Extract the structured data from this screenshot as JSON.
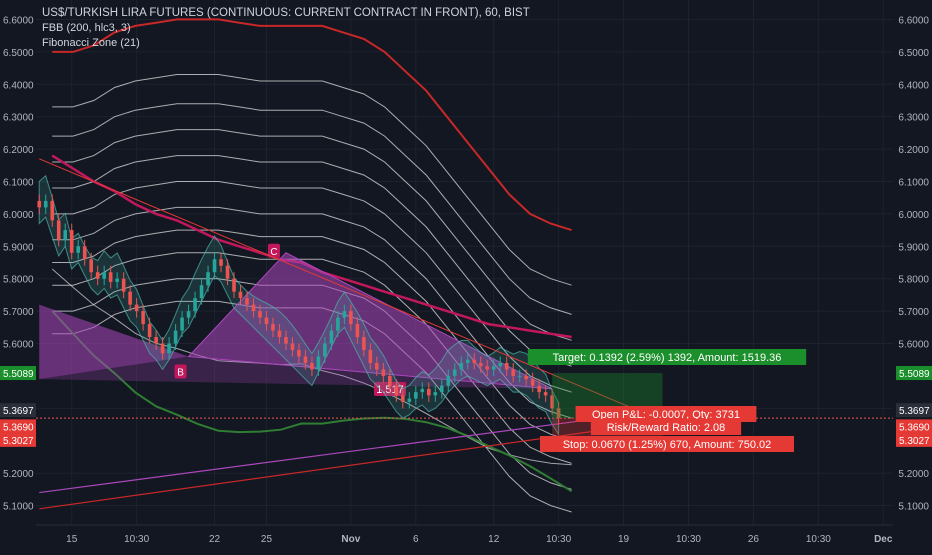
{
  "header": {
    "title": "US$/TURKISH LIRA FUTURES (CONTINUOUS: CURRENT CONTRACT IN FRONT), 60, BIST",
    "indicator_1": "FBB (200, hlc3, 3)",
    "indicator_2": "Fibonacci Zone (21)"
  },
  "colors": {
    "background": "#131722",
    "grid": "#1e2230",
    "axis_text": "#b2b5be",
    "up_candle": "#26a69a",
    "down_candle": "#ef5350",
    "fbb_outer": "#c62828",
    "fbb_mid": "#c2185b",
    "fbb_bands": "#e0e0e0",
    "fib_zone": "#4db6ac",
    "pattern_fill": "#ab47bc",
    "target_green": "#1b8f2b",
    "stop_red": "#e53935"
  },
  "chart_data": {
    "type": "candlestick",
    "symbol": "US$/TURKISH LIRA FUTURES (CONTINUOUS: CURRENT CONTRACT IN FRONT)",
    "timeframe": "60",
    "exchange": "BIST",
    "ylim": [
      5.04,
      6.66
    ],
    "y_ticks": [
      "6.6000",
      "6.5000",
      "6.4000",
      "6.3000",
      "6.2000",
      "6.1000",
      "6.0000",
      "5.9000",
      "5.8000",
      "5.7000",
      "5.6000",
      "5.4000",
      "5.2000",
      "5.1000"
    ],
    "y_tick_values": [
      6.6,
      6.5,
      6.4,
      6.3,
      6.2,
      6.1,
      6.0,
      5.9,
      5.8,
      5.7,
      5.6,
      5.4,
      5.2,
      5.1
    ],
    "x_ticks": [
      "15",
      "10:30",
      "22",
      "25",
      "Nov",
      "6",
      "12",
      "10:30",
      "19",
      "10:30",
      "26",
      "10:30",
      "Dec"
    ],
    "x_tick_bar_index": [
      5,
      15,
      27,
      35,
      48,
      58,
      70,
      80,
      90,
      100,
      110,
      120,
      130
    ],
    "close_series": [
      6.02,
      6.04,
      5.98,
      5.92,
      5.95,
      5.88,
      5.9,
      5.86,
      5.82,
      5.8,
      5.82,
      5.79,
      5.8,
      5.76,
      5.72,
      5.7,
      5.66,
      5.62,
      5.6,
      5.57,
      5.6,
      5.64,
      5.68,
      5.7,
      5.74,
      5.78,
      5.82,
      5.86,
      5.84,
      5.8,
      5.76,
      5.74,
      5.72,
      5.7,
      5.68,
      5.66,
      5.64,
      5.62,
      5.6,
      5.58,
      5.56,
      5.54,
      5.52,
      5.56,
      5.6,
      5.64,
      5.68,
      5.7,
      5.66,
      5.62,
      5.58,
      5.54,
      5.52,
      5.5,
      5.47,
      5.44,
      5.42,
      5.43,
      5.45,
      5.46,
      5.44,
      5.45,
      5.47,
      5.5,
      5.52,
      5.54,
      5.55,
      5.54,
      5.53,
      5.52,
      5.53,
      5.54,
      5.52,
      5.5,
      5.5,
      5.49,
      5.47,
      5.45,
      5.44,
      5.4,
      5.37
    ],
    "fbb_outer_upper": [
      6.5,
      6.5,
      6.52,
      6.56,
      6.58,
      6.59,
      6.6,
      6.6,
      6.6,
      6.59,
      6.58,
      6.58,
      6.58,
      6.58,
      6.56,
      6.54,
      6.5,
      6.44,
      6.38,
      6.3,
      6.22,
      6.14,
      6.06,
      6.0,
      5.97,
      5.95
    ],
    "fbb_mid": [
      6.18,
      6.14,
      6.1,
      6.07,
      6.03,
      6.0,
      5.98,
      5.95,
      5.92,
      5.9,
      5.88,
      5.86,
      5.85,
      5.82,
      5.8,
      5.78,
      5.76,
      5.74,
      5.72,
      5.7,
      5.68,
      5.66,
      5.65,
      5.64,
      5.63,
      5.62
    ],
    "annotations": {
      "point_B": "B",
      "point_C": "C",
      "ratio_label": "1.517"
    },
    "current_price": "5.3697",
    "price_tags": [
      "5.5089",
      "5.3697",
      "5.3690",
      "5.3027"
    ],
    "target_label": "Target: 0.1392 (2.59%) 1392, Amount: 1519.36",
    "position_label_1": "Open P&L: -0.0007, Qty: 3731",
    "position_label_2": "Risk/Reward Ratio: 2.08",
    "stop_label": "Stop: 0.0670 (1.25%) 670, Amount: 750.02",
    "grid": true
  }
}
